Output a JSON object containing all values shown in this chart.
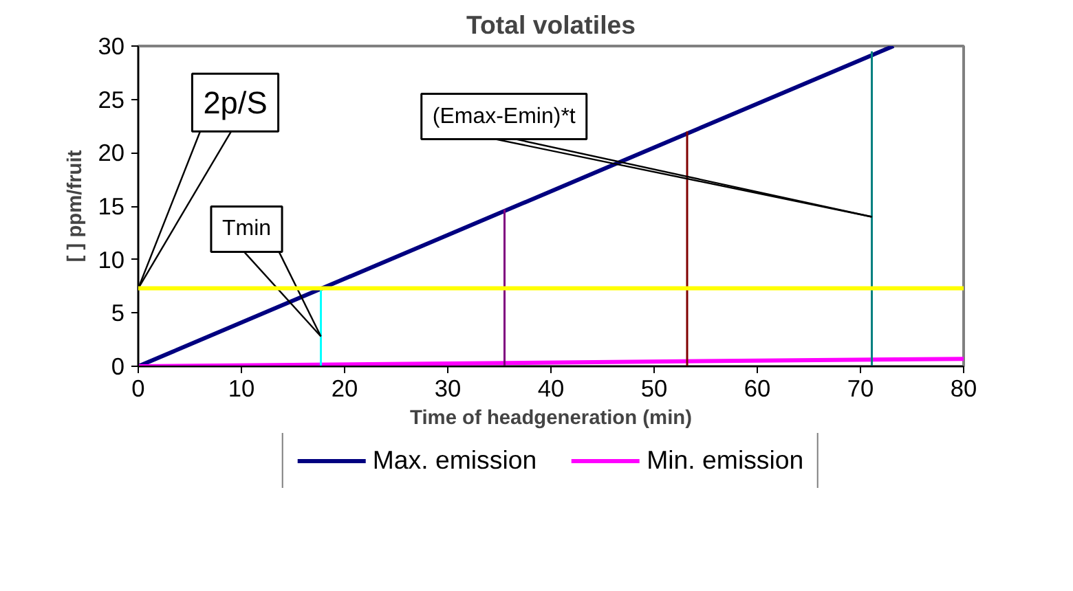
{
  "chart_data": {
    "type": "line",
    "title": "Total volatiles",
    "xlabel": "Time of headgeneration (min)",
    "ylabel": "[ ] ppm/fruit",
    "xlim": [
      0,
      80
    ],
    "ylim": [
      0,
      30
    ],
    "xticks": [
      0,
      10,
      20,
      30,
      40,
      50,
      60,
      70,
      80
    ],
    "yticks": [
      0,
      5,
      10,
      15,
      20,
      25,
      30
    ],
    "grid": false,
    "legend": "bottom",
    "marker": "none",
    "line_style": "solid",
    "series": [
      {
        "name": "Max. emission",
        "color": "#000080",
        "x": [
          0,
          73.2
        ],
        "values": [
          0,
          30
        ]
      },
      {
        "name": "Min. emission",
        "color": "#ff00ff",
        "x": [
          0,
          80
        ],
        "values": [
          0,
          0.7
        ]
      },
      {
        "color": "#00ffff",
        "x": [
          17.7,
          17.7
        ],
        "values": [
          0,
          7.3
        ]
      },
      {
        "color": "#800080",
        "x": [
          35.5,
          35.5
        ],
        "values": [
          0,
          14.7
        ]
      },
      {
        "color": "#800000",
        "x": [
          53.2,
          53.2
        ],
        "values": [
          0,
          22
        ]
      },
      {
        "color": "#008080",
        "x": [
          71.1,
          71.1
        ],
        "values": [
          0,
          29.5
        ]
      }
    ],
    "ref_lines": [
      {
        "axis": "y",
        "value": 7.3,
        "color": "#ffff00"
      }
    ],
    "annotations": [
      {
        "text": "2p/S",
        "x": 0,
        "y": 7.3
      },
      {
        "text": "Tmin",
        "x": 17.7,
        "y": 2.8
      },
      {
        "text": "(Emax-Emin)*t",
        "x": 71.1,
        "y": 14
      }
    ]
  }
}
